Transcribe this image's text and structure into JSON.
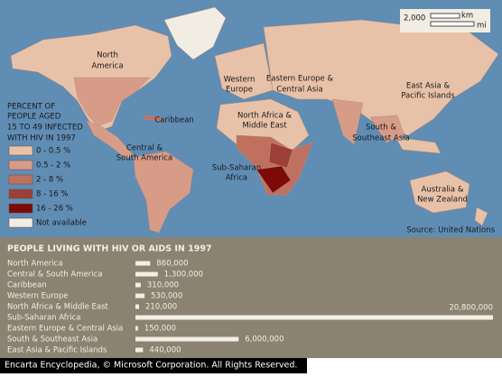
{
  "map": {
    "region_labels": [
      {
        "lines": [
          "North",
          "America"
        ]
      },
      {
        "lines": [
          "Caribbean"
        ]
      },
      {
        "lines": [
          "Central &",
          "South America"
        ]
      },
      {
        "lines": [
          "Western",
          "Europe"
        ]
      },
      {
        "lines": [
          "Eastern Europe &",
          "Central Asia"
        ]
      },
      {
        "lines": [
          "North Africa &",
          "Middle East"
        ]
      },
      {
        "lines": [
          "East Asia &",
          "Pacific Islands"
        ]
      },
      {
        "lines": [
          "South &",
          "Southeast Asia"
        ]
      },
      {
        "lines": [
          "Sub-Saharan",
          "Africa"
        ]
      },
      {
        "lines": [
          "Australia &",
          "New Zealand"
        ]
      }
    ],
    "legend": {
      "title_lines": [
        "PERCENT OF",
        "PEOPLE AGED",
        "15 TO 49 INFECTED",
        "WITH HIV IN 1997"
      ],
      "items": [
        {
          "label": "0 - 0.5 %",
          "color": "#e8c2a8"
        },
        {
          "label": "0.5 - 2 %",
          "color": "#d79c88"
        },
        {
          "label": "2 - 8 %",
          "color": "#c0705f"
        },
        {
          "label": "8 - 16 %",
          "color": "#9c3f36"
        },
        {
          "label": "16 - 26 %",
          "color": "#7c0a08"
        },
        {
          "label": "Not available",
          "color": "#f1ede3"
        }
      ]
    },
    "scale": {
      "distance": "2,000",
      "units": [
        "km",
        "mi"
      ]
    },
    "source": "Source: United Nations"
  },
  "chart_data": {
    "type": "bar",
    "title": "PEOPLE LIVING WITH HIV OR AIDS IN 1997",
    "categories": [
      "North America",
      "Central & South America",
      "Caribbean",
      "Western Europe",
      "North Africa & Middle East",
      "Sub-Saharan Africa",
      "Eastern Europe & Central Asia",
      "South & Southeast Asia",
      "East Asia & Pacific Islands"
    ],
    "values": [
      860000,
      1300000,
      310000,
      530000,
      210000,
      20800000,
      150000,
      6000000,
      440000
    ],
    "value_labels": [
      "860,000",
      "1,300,000",
      "310,000",
      "530,000",
      "210,000",
      "20,800,000",
      "150,000",
      "6,000,000",
      "440,000"
    ],
    "color": "#f2eee4"
  },
  "footer": "Encarta Encyclopedia, © Microsoft Corporation. All Rights Reserved."
}
